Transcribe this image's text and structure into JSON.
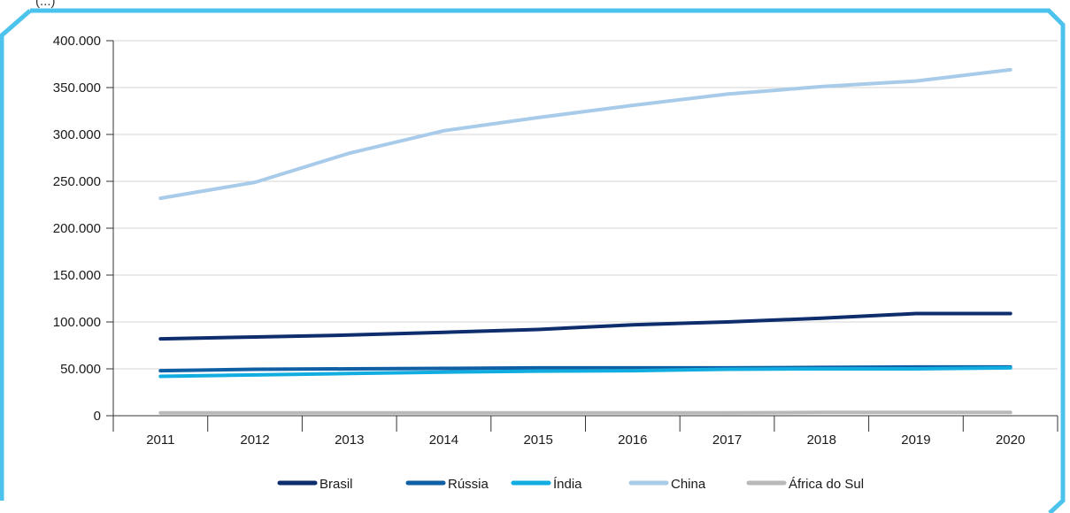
{
  "header": {
    "partial_text": "(...)"
  },
  "chart_data": {
    "type": "line",
    "title": "",
    "xlabel": "",
    "ylabel": "",
    "x": [
      "2011",
      "2012",
      "2013",
      "2014",
      "2015",
      "2016",
      "2017",
      "2018",
      "2019",
      "2020"
    ],
    "ylim": [
      0,
      400000
    ],
    "yticks": [
      0,
      50000,
      100000,
      150000,
      200000,
      250000,
      300000,
      350000,
      400000
    ],
    "ytick_labels": [
      "0",
      "50.000",
      "100.000",
      "150.000",
      "200.000",
      "250.000",
      "300.000",
      "350.000",
      "400.000"
    ],
    "grid": "horizontal",
    "legend_position": "bottom",
    "series": [
      {
        "name": "Brasil",
        "color": "#0d2d6c",
        "values": [
          82000,
          84000,
          86000,
          89000,
          92000,
          97000,
          100000,
          104000,
          109000,
          109000
        ]
      },
      {
        "name": "Rússia",
        "color": "#0f5fa5",
        "values": [
          48000,
          49500,
          50000,
          50500,
          51000,
          51000,
          51000,
          51500,
          52000,
          52000
        ]
      },
      {
        "name": "Índia",
        "color": "#11ade0",
        "values": [
          42000,
          43500,
          45000,
          46500,
          47500,
          48000,
          49500,
          50000,
          50000,
          51000
        ]
      },
      {
        "name": "China",
        "color": "#a8cbea",
        "values": [
          232000,
          249000,
          280000,
          304000,
          318000,
          331000,
          343000,
          351000,
          357000,
          369000
        ]
      },
      {
        "name": "África do Sul",
        "color": "#b9b9b9",
        "values": [
          3000,
          3000,
          3000,
          3000,
          3000,
          3000,
          3000,
          3500,
          3500,
          3500
        ]
      }
    ]
  }
}
